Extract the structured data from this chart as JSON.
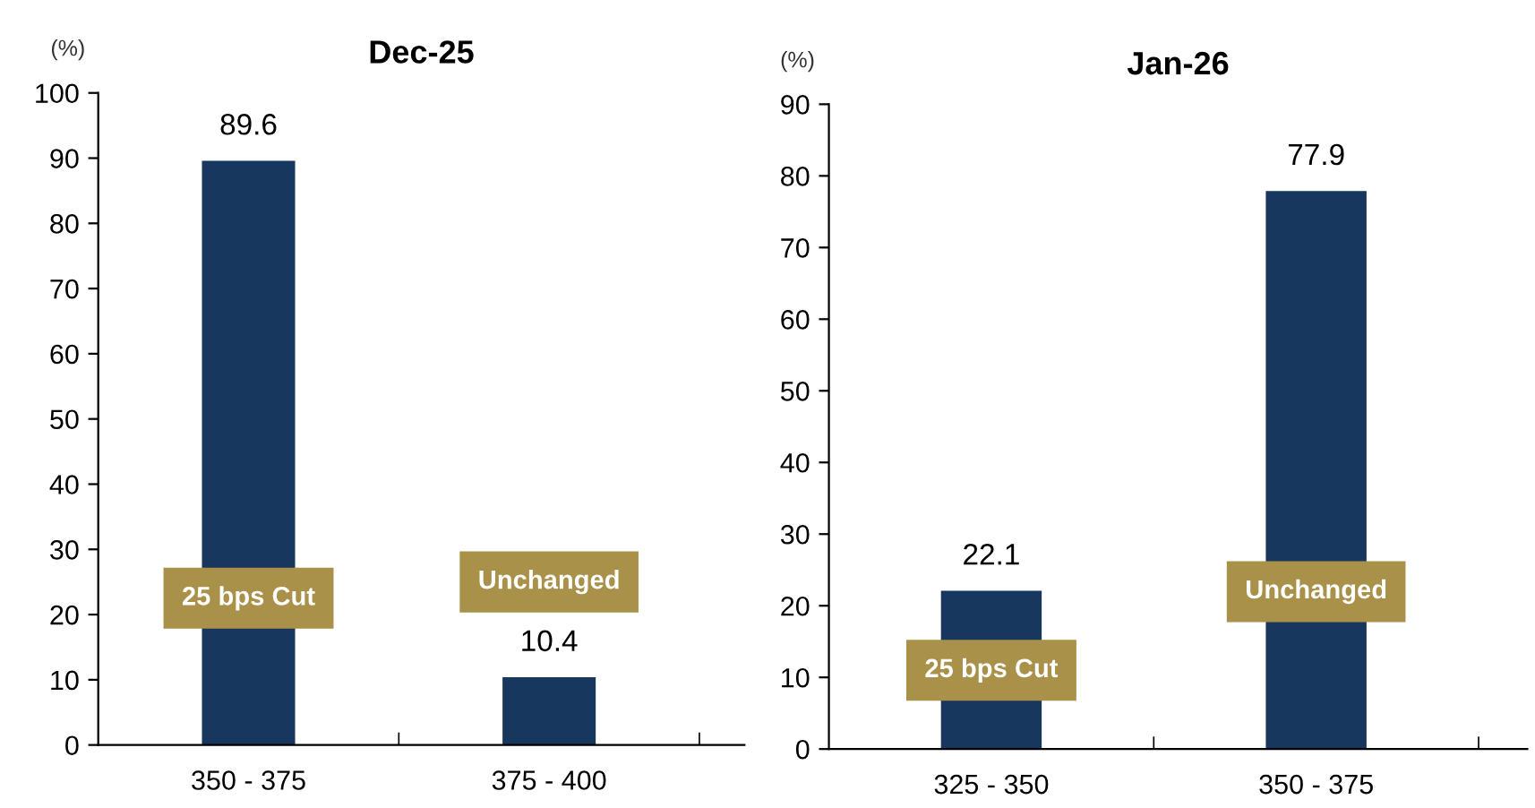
{
  "chart_data": [
    {
      "type": "bar",
      "title": "Dec-25",
      "ylabel": "(%)",
      "categories": [
        "350 - 375",
        "375 - 400"
      ],
      "series": [
        {
          "color": "#17375e",
          "values": [
            89.6,
            10.4
          ]
        }
      ],
      "ylim": [
        0,
        100
      ],
      "yticks": [
        0,
        10,
        20,
        30,
        40,
        50,
        60,
        70,
        80,
        90,
        100
      ],
      "data_labels": true,
      "grid": false,
      "legend": false,
      "annotations": [
        "25 bps Cut",
        "Unchanged"
      ]
    },
    {
      "type": "bar",
      "title": "Jan-26",
      "ylabel": "(%)",
      "categories": [
        "325 - 350",
        "350 - 375"
      ],
      "series": [
        {
          "color": "#17375e",
          "values": [
            22.1,
            77.9
          ]
        }
      ],
      "ylim": [
        0,
        90
      ],
      "yticks": [
        0,
        10,
        20,
        30,
        40,
        50,
        60,
        70,
        80,
        90
      ],
      "data_labels": true,
      "grid": false,
      "legend": false,
      "annotations": [
        "25 bps Cut",
        "Unchanged"
      ]
    }
  ]
}
